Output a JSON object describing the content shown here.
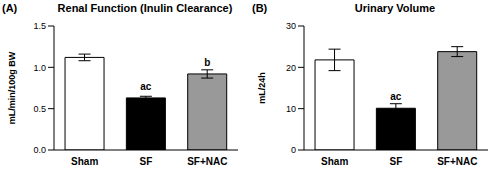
{
  "chart_data": [
    {
      "type": "bar",
      "panel_label": "(A)",
      "title": "Renal Function (Inulin Clearance)",
      "y_label": "mL/min/100g BW",
      "categories": [
        "Sham",
        "SF",
        "SF+NAC"
      ],
      "values": [
        1.12,
        0.63,
        0.92
      ],
      "errors": [
        0.04,
        0.02,
        0.05
      ],
      "annotations": [
        null,
        "ac",
        "b"
      ],
      "colors": [
        "#ffffff",
        "#000000",
        "#999999"
      ],
      "ylim": [
        0,
        1.5
      ],
      "yticks": [
        {
          "value": 0,
          "label": "0.0"
        },
        {
          "value": 0.5,
          "label": "0.5"
        },
        {
          "value": 1,
          "label": "1.0"
        },
        {
          "value": 1.5,
          "label": "1.5"
        }
      ],
      "grid": false
    },
    {
      "type": "bar",
      "panel_label": "(B)",
      "title": "Urinary Volume",
      "y_label": "mL/24h",
      "categories": [
        "Sham",
        "SF",
        "SF+NAC"
      ],
      "values": [
        21.8,
        10.1,
        23.8
      ],
      "errors": [
        2.6,
        1.1,
        1.2
      ],
      "annotations": [
        null,
        "ac",
        null
      ],
      "colors": [
        "#ffffff",
        "#000000",
        "#999999"
      ],
      "ylim": [
        0,
        30
      ],
      "yticks": [
        0,
        10,
        20,
        30
      ],
      "grid": false
    }
  ]
}
